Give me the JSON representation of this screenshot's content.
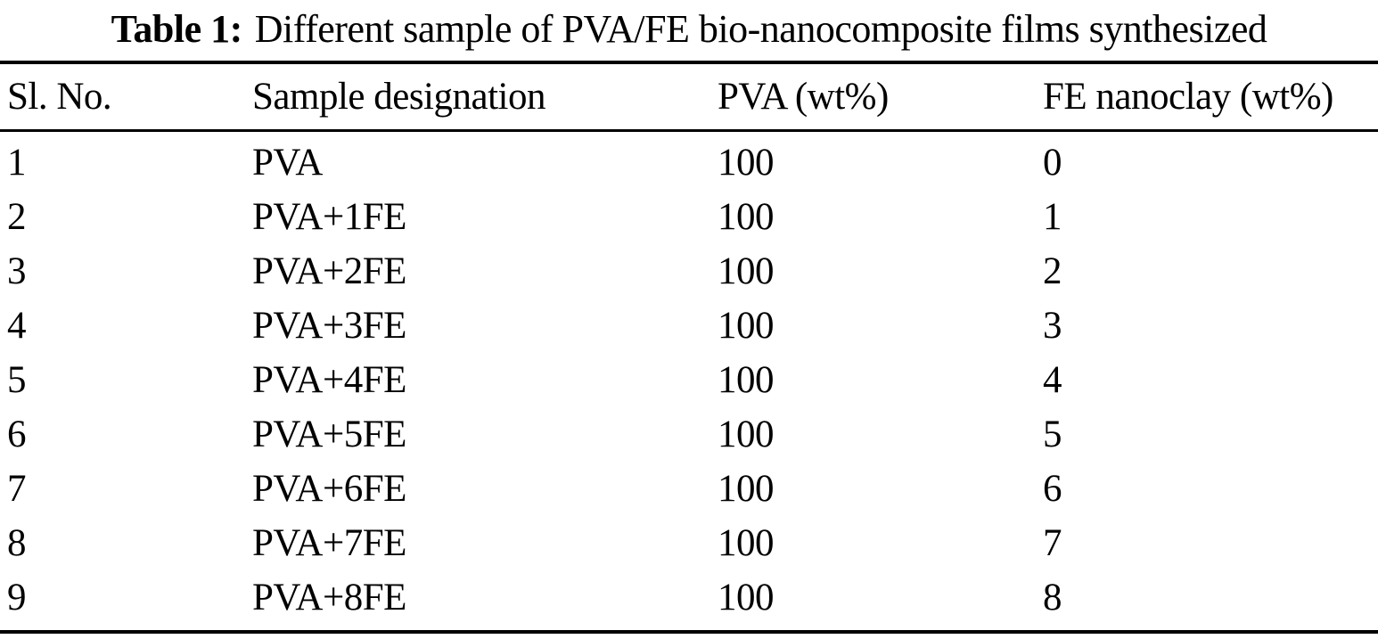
{
  "page": {
    "background_color": "#ffffff",
    "text_color": "#000000"
  },
  "caption": {
    "label": "Table 1:",
    "text": "Different sample of PVA/FE bio-nanocomposite films synthesized"
  },
  "table": {
    "columns": [
      "Sl. No.",
      "Sample designation",
      "PVA (wt%)",
      "FE nanoclay (wt%)"
    ],
    "rows": [
      [
        "1",
        "PVA",
        "100",
        "0"
      ],
      [
        "2",
        "PVA+1FE",
        "100",
        "1"
      ],
      [
        "3",
        "PVA+2FE",
        "100",
        "2"
      ],
      [
        "4",
        "PVA+3FE",
        "100",
        "3"
      ],
      [
        "5",
        "PVA+4FE",
        "100",
        "4"
      ],
      [
        "6",
        "PVA+5FE",
        "100",
        "5"
      ],
      [
        "7",
        "PVA+6FE",
        "100",
        "6"
      ],
      [
        "8",
        "PVA+7FE",
        "100",
        "7"
      ],
      [
        "9",
        "PVA+8FE",
        "100",
        "8"
      ]
    ]
  }
}
